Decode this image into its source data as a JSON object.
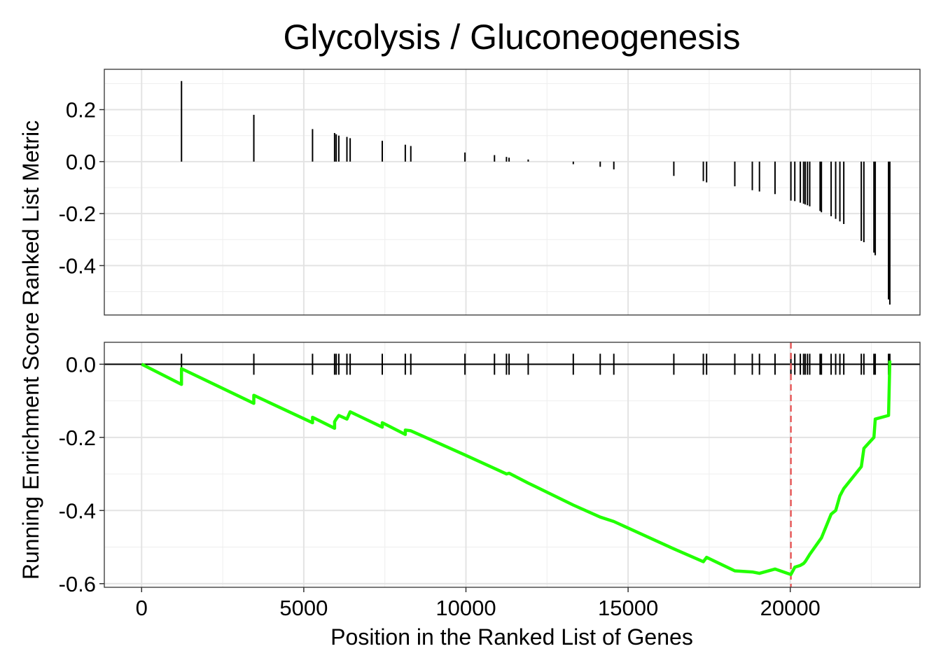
{
  "chart_data": {
    "type": "line",
    "title": "Glycolysis / Gluconeogenesis",
    "xlabel": "Position in the Ranked List of Genes",
    "ylabel": "Running Enrichment Score Ranked List Metric",
    "ylabel_top": "Ranked List Metric",
    "ylabel_bottom": "Running Enrichment Score",
    "xlim": [
      -1150,
      24000
    ],
    "x_ticks": [
      0,
      5000,
      10000,
      15000,
      20000
    ],
    "x_tick_labels": [
      "0",
      "5000",
      "10000",
      "15000",
      "20000"
    ],
    "grid": true,
    "top_panel": {
      "ylim": [
        -0.59,
        0.355
      ],
      "y_ticks": [
        0.2,
        0.0,
        -0.2,
        -0.4
      ],
      "y_tick_labels": [
        "0.2",
        "0.0",
        "-0.2",
        "-0.4"
      ],
      "hits_x": [
        1230,
        3460,
        5270,
        5950,
        6000,
        6080,
        6330,
        6430,
        7420,
        8130,
        8300,
        9970,
        10880,
        11250,
        11330,
        11920,
        13310,
        14140,
        14560,
        16410,
        17320,
        17420,
        18290,
        18830,
        19050,
        19530,
        20020,
        20140,
        20310,
        20410,
        20460,
        20530,
        20600,
        20920,
        20960,
        21260,
        21400,
        21530,
        21650,
        22190,
        22270,
        22580,
        22620,
        23030,
        23070
      ],
      "metric": [
        0.31,
        0.18,
        0.125,
        0.11,
        0.105,
        0.1,
        0.095,
        0.09,
        0.08,
        0.065,
        0.06,
        0.035,
        0.025,
        0.018,
        0.015,
        0.008,
        -0.01,
        -0.02,
        -0.03,
        -0.055,
        -0.075,
        -0.08,
        -0.095,
        -0.11,
        -0.115,
        -0.125,
        -0.15,
        -0.152,
        -0.158,
        -0.162,
        -0.165,
        -0.168,
        -0.172,
        -0.19,
        -0.195,
        -0.21,
        -0.22,
        -0.23,
        -0.24,
        -0.305,
        -0.31,
        -0.35,
        -0.36,
        -0.53,
        -0.55
      ]
    },
    "bottom_panel": {
      "ylim": [
        -0.61,
        0.06
      ],
      "y_ticks": [
        0.0,
        -0.2,
        -0.4,
        -0.6
      ],
      "y_tick_labels": [
        "0.0",
        "-0.2",
        "-0.4",
        "-0.6"
      ],
      "series": [
        {
          "color": "#22ff00",
          "x": [
            0,
            1230,
            1230,
            3460,
            3460,
            5270,
            5270,
            5950,
            5950,
            6000,
            6080,
            6330,
            6430,
            7420,
            7420,
            8130,
            8130,
            8300,
            9970,
            10880,
            11250,
            11330,
            11920,
            13310,
            14140,
            14560,
            16410,
            17320,
            17420,
            18290,
            18830,
            19050,
            19530,
            20020,
            20140,
            20310,
            20410,
            20460,
            20530,
            20600,
            20920,
            20960,
            21260,
            21400,
            21530,
            21650,
            22190,
            22270,
            22580,
            22620,
            23030,
            23070
          ],
          "y": [
            0.0,
            -0.055,
            -0.012,
            -0.107,
            -0.085,
            -0.16,
            -0.145,
            -0.175,
            -0.157,
            -0.15,
            -0.14,
            -0.15,
            -0.13,
            -0.172,
            -0.16,
            -0.192,
            -0.18,
            -0.182,
            -0.248,
            -0.285,
            -0.3,
            -0.298,
            -0.325,
            -0.385,
            -0.418,
            -0.43,
            -0.505,
            -0.54,
            -0.528,
            -0.565,
            -0.568,
            -0.572,
            -0.56,
            -0.575,
            -0.555,
            -0.55,
            -0.545,
            -0.54,
            -0.53,
            -0.52,
            -0.48,
            -0.475,
            -0.41,
            -0.4,
            -0.36,
            -0.34,
            -0.28,
            -0.23,
            -0.2,
            -0.15,
            -0.14,
            0.01
          ]
        }
      ],
      "max_deviation_x": 20020,
      "max_deviation_color": "#e74c4c"
    }
  }
}
